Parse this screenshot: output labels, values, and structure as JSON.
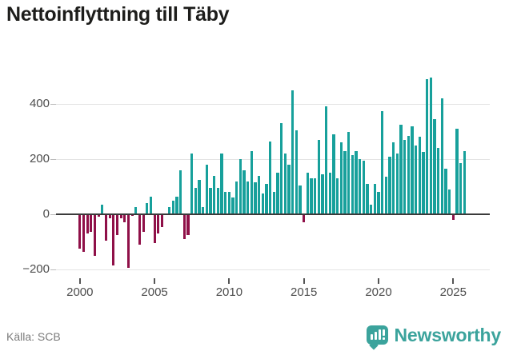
{
  "title": "Nettoinflyttning till Täby",
  "footer": {
    "source_label": "Källa: SCB"
  },
  "brand": {
    "name": "Newsworthy",
    "icon": "newsworthy-badge-bar-chart-icon",
    "color": "#3ba39c"
  },
  "chart_data": {
    "type": "bar",
    "title": "Nettoinflyttning till Täby",
    "frequency": "quarterly",
    "x_start": "2000-Q1",
    "x_end": "2025-Q4",
    "values": [
      -125,
      -135,
      -70,
      -65,
      -150,
      -10,
      35,
      -95,
      -15,
      -185,
      -75,
      -15,
      -30,
      -195,
      -5,
      25,
      -110,
      -65,
      40,
      65,
      -105,
      -70,
      -45,
      0,
      25,
      50,
      65,
      160,
      -90,
      -75,
      220,
      95,
      125,
      25,
      180,
      95,
      140,
      95,
      220,
      80,
      80,
      60,
      120,
      200,
      160,
      120,
      230,
      115,
      140,
      75,
      110,
      265,
      80,
      150,
      330,
      220,
      180,
      450,
      305,
      105,
      -30,
      150,
      130,
      130,
      270,
      145,
      390,
      150,
      290,
      130,
      260,
      230,
      300,
      215,
      230,
      200,
      195,
      110,
      35,
      110,
      80,
      375,
      135,
      210,
      260,
      220,
      325,
      270,
      285,
      320,
      250,
      280,
      225,
      490,
      495,
      345,
      240,
      420,
      165,
      90,
      -20,
      310,
      185,
      230
    ],
    "xtick_labels": [
      "2000",
      "2005",
      "2010",
      "2015",
      "2020",
      "2025"
    ],
    "ytick_values": [
      -200,
      0,
      200,
      400
    ],
    "ytick_labels": [
      "−200",
      "0",
      "200",
      "400"
    ],
    "ylim": [
      -250,
      520
    ],
    "grid": "horizontal",
    "legend": "none",
    "zero_line": true,
    "colors": {
      "positive": "#17a09b",
      "negative": "#8f1048"
    }
  }
}
